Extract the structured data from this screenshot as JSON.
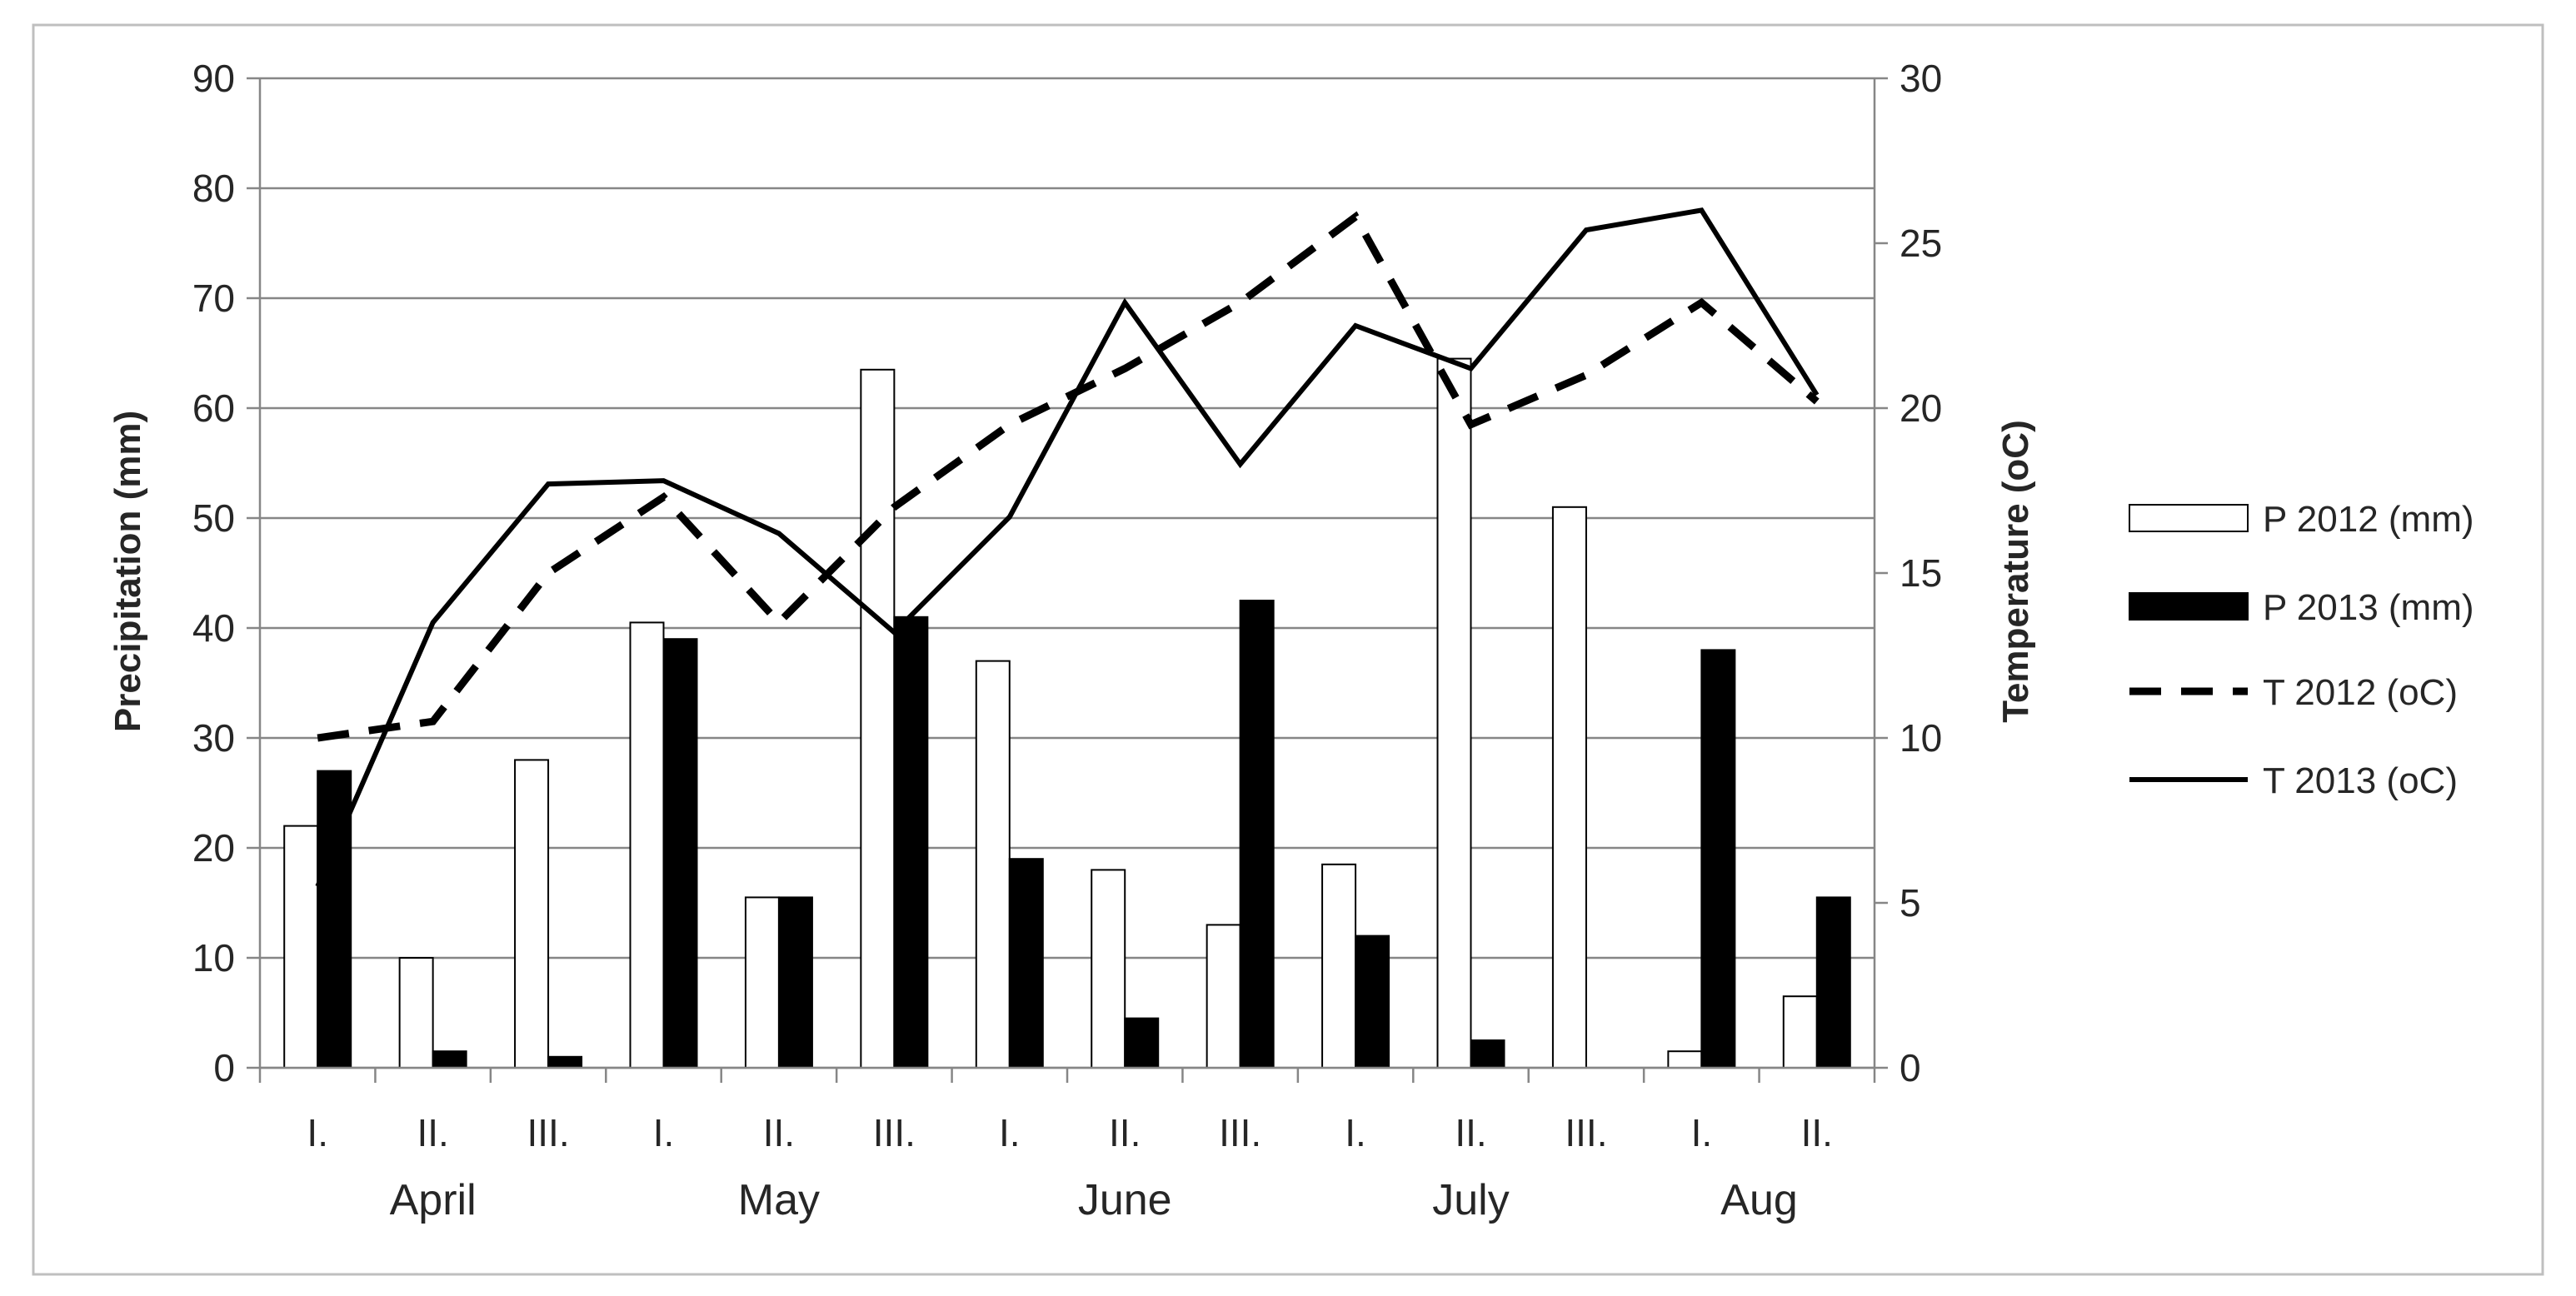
{
  "chart_data": {
    "type": "bar",
    "categories": [
      "I.",
      "II.",
      "III.",
      "I.",
      "II.",
      "III.",
      "I.",
      "II.",
      "III.",
      "I.",
      "II.",
      "III.",
      "I.",
      "II."
    ],
    "months": [
      {
        "label": "April",
        "start": 0,
        "end": 2
      },
      {
        "label": "May",
        "start": 3,
        "end": 5
      },
      {
        "label": "June",
        "start": 6,
        "end": 8
      },
      {
        "label": "July",
        "start": 9,
        "end": 11
      },
      {
        "label": "Aug",
        "start": 12,
        "end": 13
      }
    ],
    "ylabel": "Precipitation (mm)",
    "ylim": [
      0,
      90
    ],
    "yticks": [
      0,
      10,
      20,
      30,
      40,
      50,
      60,
      70,
      80,
      90
    ],
    "y2label": "Temperature (oC)",
    "y2lim": [
      0,
      30
    ],
    "y2ticks": [
      0,
      5,
      10,
      15,
      20,
      25,
      30
    ],
    "grid": "horizontal",
    "legend_position": "right",
    "series": [
      {
        "name": "P 2012 (mm)",
        "type": "bar",
        "axis": "left",
        "fill": "#ffffff",
        "stroke": "#000000",
        "values": [
          22,
          10,
          28,
          40.5,
          15.5,
          63.5,
          37,
          18,
          13,
          18.5,
          64.5,
          51,
          1.5,
          6.5
        ]
      },
      {
        "name": "P 2013 (mm)",
        "type": "bar",
        "axis": "left",
        "fill": "#000000",
        "stroke": "#000000",
        "values": [
          27,
          1.5,
          1,
          39,
          15.5,
          41,
          19,
          4.5,
          42.5,
          12,
          2.5,
          0,
          38,
          15.5
        ]
      },
      {
        "name": "T 2012 (oC)",
        "type": "line",
        "axis": "right",
        "dash": "dashed",
        "color": "#000000",
        "values": [
          10,
          10.5,
          15,
          17.3,
          13.5,
          17,
          19.5,
          21.2,
          23.2,
          25.8,
          19.5,
          21,
          23.2,
          20.2
        ]
      },
      {
        "name": "T 2013 (oC)",
        "type": "line",
        "axis": "right",
        "dash": "solid",
        "color": "#000000",
        "values": [
          5.5,
          13.5,
          17.7,
          17.8,
          16.2,
          13.2,
          16.7,
          23.2,
          18.3,
          22.5,
          21.2,
          25.4,
          26,
          20.4
        ]
      }
    ]
  }
}
